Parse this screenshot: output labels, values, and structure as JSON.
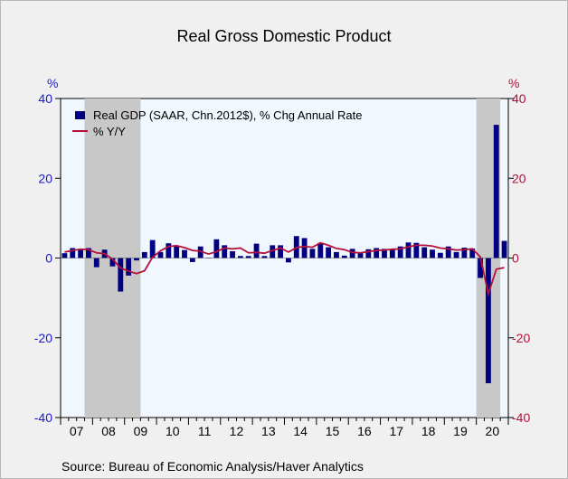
{
  "page": {
    "title": "Real Gross Domestic Product",
    "left_unit": "%",
    "right_unit": "%",
    "source": "Source:  Bureau of Economic Analysis/Haver Analytics"
  },
  "colors": {
    "background": "#f0f0f0",
    "plot_background": "#f0f7ff",
    "recession_shading": "#c8c8c8",
    "bar": "#000080",
    "line": "#b5103c",
    "left_axis": "#1a1acc",
    "right_axis": "#b5103c"
  },
  "chart_data": {
    "type": "bar",
    "title": "Real Gross Domestic Product",
    "xlabel": "",
    "ylabel": "%",
    "ylim": [
      -40,
      40
    ],
    "y2lim": [
      -40,
      40
    ],
    "yticks": [
      -40,
      -20,
      0,
      20,
      40
    ],
    "legend_position": "top-left",
    "grid": false,
    "x_tick_labels": [
      "07",
      "08",
      "09",
      "10",
      "11",
      "12",
      "13",
      "14",
      "15",
      "16",
      "17",
      "18",
      "19",
      "20"
    ],
    "recessions": [
      {
        "start": "2007-Q4",
        "end": "2009-Q2"
      },
      {
        "start": "2020-Q1",
        "end": "2020-Q3"
      }
    ],
    "x": [
      "2007-Q1",
      "2007-Q2",
      "2007-Q3",
      "2007-Q4",
      "2008-Q1",
      "2008-Q2",
      "2008-Q3",
      "2008-Q4",
      "2009-Q1",
      "2009-Q2",
      "2009-Q3",
      "2009-Q4",
      "2010-Q1",
      "2010-Q2",
      "2010-Q3",
      "2010-Q4",
      "2011-Q1",
      "2011-Q2",
      "2011-Q3",
      "2011-Q4",
      "2012-Q1",
      "2012-Q2",
      "2012-Q3",
      "2012-Q4",
      "2013-Q1",
      "2013-Q2",
      "2013-Q3",
      "2013-Q4",
      "2014-Q1",
      "2014-Q2",
      "2014-Q3",
      "2014-Q4",
      "2015-Q1",
      "2015-Q2",
      "2015-Q3",
      "2015-Q4",
      "2016-Q1",
      "2016-Q2",
      "2016-Q3",
      "2016-Q4",
      "2017-Q1",
      "2017-Q2",
      "2017-Q3",
      "2017-Q4",
      "2018-Q1",
      "2018-Q2",
      "2018-Q3",
      "2018-Q4",
      "2019-Q1",
      "2019-Q2",
      "2019-Q3",
      "2019-Q4",
      "2020-Q1",
      "2020-Q2",
      "2020-Q3",
      "2020-Q4"
    ],
    "series": [
      {
        "name": "Real GDP (SAAR, Chn.2012$), % Chg Annual Rate",
        "kind": "bar",
        "axis": "left",
        "color": "#000080",
        "values": [
          1.2,
          2.5,
          2.3,
          2.5,
          -2.3,
          2.1,
          -2.1,
          -8.4,
          -4.4,
          -0.6,
          1.5,
          4.5,
          1.5,
          3.7,
          3.0,
          2.0,
          -1.0,
          2.9,
          -0.1,
          4.7,
          3.2,
          1.7,
          0.5,
          0.5,
          3.6,
          0.5,
          3.2,
          3.2,
          -1.1,
          5.5,
          5.0,
          2.3,
          3.8,
          2.7,
          1.5,
          0.6,
          2.3,
          1.3,
          2.2,
          2.5,
          2.3,
          2.2,
          2.9,
          3.9,
          3.8,
          2.7,
          2.1,
          1.3,
          2.9,
          1.5,
          2.6,
          2.4,
          -5.0,
          -31.4,
          33.4,
          4.3
        ]
      },
      {
        "name": "% Y/Y",
        "kind": "line",
        "axis": "right",
        "color": "#b5103c",
        "values": [
          1.5,
          1.9,
          2.2,
          2.1,
          1.3,
          1.1,
          -0.3,
          -2.5,
          -3.3,
          -3.9,
          -3.2,
          0.2,
          1.8,
          2.9,
          3.1,
          2.6,
          1.9,
          1.7,
          1.0,
          1.6,
          2.5,
          2.3,
          2.5,
          1.3,
          1.4,
          1.2,
          1.9,
          2.5,
          1.5,
          2.6,
          2.9,
          2.7,
          3.8,
          3.2,
          2.4,
          2.1,
          1.4,
          1.3,
          1.6,
          1.9,
          2.0,
          2.2,
          2.3,
          2.8,
          3.2,
          3.2,
          3.0,
          2.5,
          2.3,
          2.0,
          2.1,
          2.3,
          0.3,
          -9.0,
          -2.8,
          -2.4
        ]
      }
    ]
  }
}
